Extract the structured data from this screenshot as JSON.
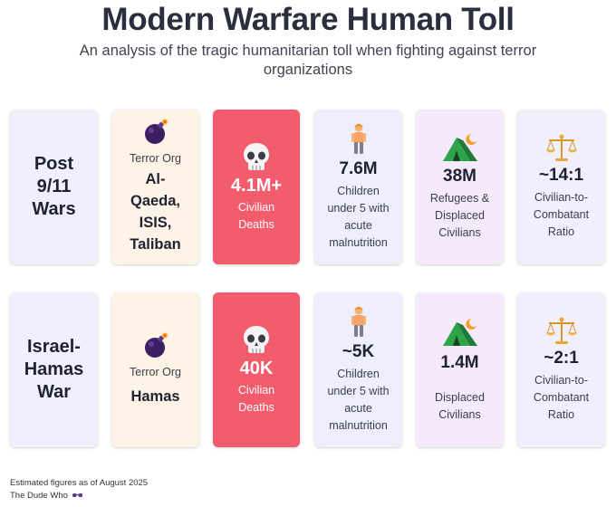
{
  "header": {
    "title": "Modern Warfare Human Toll",
    "subtitle": "An analysis of the tragic humanitarian toll when fighting against terror organizations"
  },
  "rows": [
    {
      "conflict": "Post 9/11 Wars",
      "org_label": "Terror Org",
      "org_name": "Al-Qaeda, ISIS, Taliban",
      "deaths_value": "4.1M+",
      "deaths_label": "Civilian Deaths",
      "children_value": "7.6M",
      "children_label": "Children under 5 with acute malnutrition",
      "displaced_value": "38M",
      "displaced_label": "Refugees & Displaced Civilians",
      "ratio_value": "~14:1",
      "ratio_label": "Civilian-to-Combatant Ratio"
    },
    {
      "conflict": "Israel-Hamas War",
      "org_label": "Terror Org",
      "org_name": "Hamas",
      "deaths_value": "40K",
      "deaths_label": "Civilian Deaths",
      "children_value": "~5K",
      "children_label": "Children under 5 with acute malnutrition",
      "displaced_value": "1.4M",
      "displaced_label": "Displaced Civilians",
      "ratio_value": "~2:1",
      "ratio_label": "Civilian-to-Combatant Ratio"
    }
  ],
  "icons": {
    "org": "bomb-icon",
    "deaths": "skull-icon",
    "children": "child-icon",
    "displaced": "tent-icon",
    "ratio": "scales-icon"
  },
  "colors": {
    "deaths_card": "#f25c6c",
    "conflict_card": "#f0effb",
    "org_card": "#fdf3e7",
    "displaced_card": "#f4eafc"
  },
  "footer": {
    "note": "Estimated figures as of August 2025",
    "credit": "The Dude Who"
  }
}
